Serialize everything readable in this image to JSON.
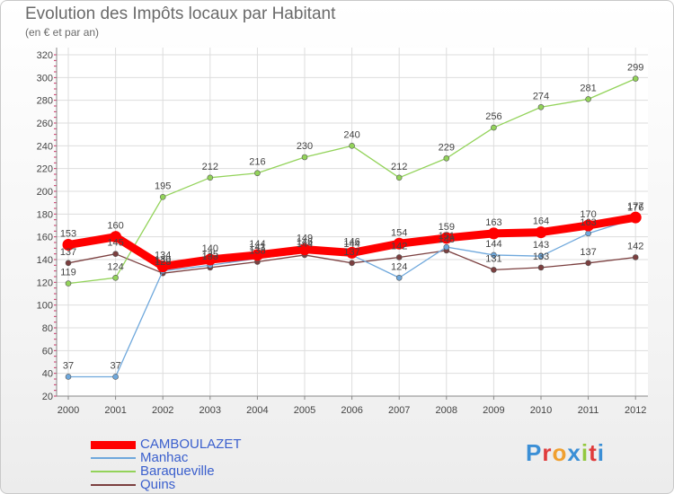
{
  "title": "Evolution des Impôts locaux par Habitant",
  "subtitle": "(en € et par an)",
  "logo_text": "Proxiti",
  "colors": {
    "camboulazet": "#ff0000",
    "manhac": "#6fa8dc",
    "baraqueville": "#93d35a",
    "quins": "#7b3f3f",
    "logo": [
      "#3b8fd6",
      "#e03b3b",
      "#f0a030",
      "#3b8fd6",
      "#93c83e",
      "#e03b3b",
      "#3b8fd6"
    ]
  },
  "chart_data": {
    "type": "line",
    "categories": [
      "2000",
      "2001",
      "2002",
      "2003",
      "2004",
      "2005",
      "2006",
      "2007",
      "2008",
      "2009",
      "2010",
      "2011",
      "2012"
    ],
    "ylim": [
      20,
      320
    ],
    "yticks": [
      20,
      40,
      60,
      80,
      100,
      120,
      140,
      160,
      180,
      200,
      220,
      240,
      260,
      280,
      300,
      320
    ],
    "grid": true,
    "legend_position": "bottom-left",
    "series": [
      {
        "name": "CAMBOULAZET",
        "values": [
          153,
          160,
          134,
          140,
          144,
          149,
          146,
          154,
          159,
          163,
          164,
          170,
          177
        ]
      },
      {
        "name": "Manhac",
        "values": [
          37,
          37,
          130,
          135,
          141,
          146,
          144,
          124,
          151,
          144,
          143,
          163,
          176
        ]
      },
      {
        "name": "Baraqueville",
        "values": [
          119,
          124,
          195,
          212,
          216,
          230,
          240,
          212,
          229,
          256,
          274,
          281,
          299
        ]
      },
      {
        "name": "Quins",
        "values": [
          137,
          145,
          128,
          133,
          138,
          144,
          137,
          142,
          148,
          131,
          133,
          137,
          142
        ]
      }
    ],
    "data_labels": {
      "CAMBOULAZET": [
        "153",
        "160",
        "134",
        "140",
        "144",
        "149",
        "146",
        "154",
        "159",
        "163",
        "164",
        "170",
        "177"
      ],
      "Manhac": [
        "37",
        "37",
        "130",
        "135",
        "141",
        "146",
        "144",
        "124",
        "151",
        "144",
        "143",
        "163",
        "176"
      ],
      "Baraqueville": [
        "119",
        "124",
        "195",
        "212",
        "216",
        "230",
        "240",
        "212",
        "229",
        "256",
        "274",
        "281",
        "299"
      ],
      "Quins": [
        "137",
        "145",
        "128",
        "133",
        "138",
        "144",
        "137",
        "142",
        "148",
        "131",
        "133",
        "137",
        "142"
      ]
    }
  }
}
